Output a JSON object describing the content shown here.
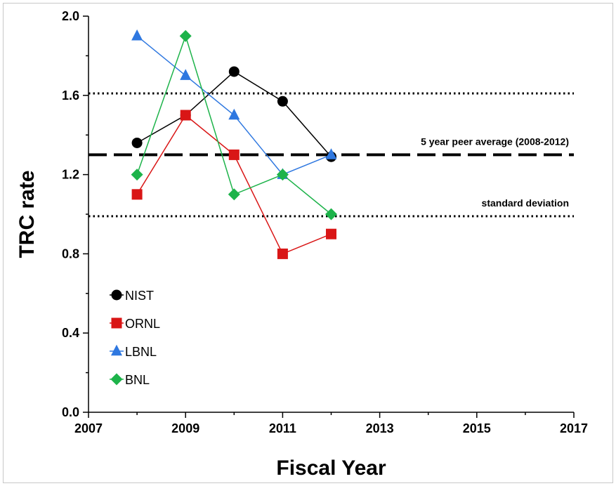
{
  "chart_data": {
    "type": "line",
    "xlabel": "Fiscal Year",
    "ylabel": "TRC rate",
    "xlim": [
      2007,
      2017
    ],
    "ylim": [
      0.0,
      2.0
    ],
    "x_ticks": [
      "2007",
      "2009",
      "2011",
      "2013",
      "2015",
      "2017"
    ],
    "y_ticks": [
      "0.0",
      "0.4",
      "0.8",
      "1.2",
      "1.6",
      "2.0"
    ],
    "x_tick_values": [
      2007,
      2009,
      2011,
      2013,
      2015,
      2017
    ],
    "y_tick_values": [
      0.0,
      0.4,
      0.8,
      1.2,
      1.6,
      2.0
    ],
    "x_minor_ticks": [
      2008,
      2010,
      2012,
      2014,
      2016
    ],
    "y_minor_ticks": [
      0.2,
      0.6,
      1.0,
      1.4,
      1.8
    ],
    "grid": false,
    "legend_position": "bottom-left",
    "series": [
      {
        "name": "NIST",
        "color": "#000000",
        "marker": "circle",
        "x": [
          2008,
          2009,
          2010,
          2011,
          2012
        ],
        "values": [
          1.36,
          1.5,
          1.72,
          1.57,
          1.29
        ]
      },
      {
        "name": "ORNL",
        "color": "#d91616",
        "marker": "square",
        "x": [
          2008,
          2009,
          2010,
          2011,
          2012
        ],
        "values": [
          1.1,
          1.5,
          1.3,
          0.8,
          0.9
        ]
      },
      {
        "name": "LBNL",
        "color": "#2f78e0",
        "marker": "triangle",
        "x": [
          2008,
          2009,
          2010,
          2011,
          2012
        ],
        "values": [
          1.9,
          1.7,
          1.5,
          1.2,
          1.3
        ]
      },
      {
        "name": "BNL",
        "color": "#1db34a",
        "marker": "diamond",
        "x": [
          2008,
          2009,
          2010,
          2011,
          2012
        ],
        "values": [
          1.2,
          1.9,
          1.1,
          1.2,
          1.0
        ]
      }
    ],
    "reference_lines": [
      {
        "value": 1.61,
        "style": "dotted",
        "label": ""
      },
      {
        "value": 1.3,
        "style": "dashed",
        "label": "5 year peer average (2008-2012)"
      },
      {
        "value": 0.99,
        "style": "dotted",
        "label": "standard deviation"
      }
    ]
  }
}
